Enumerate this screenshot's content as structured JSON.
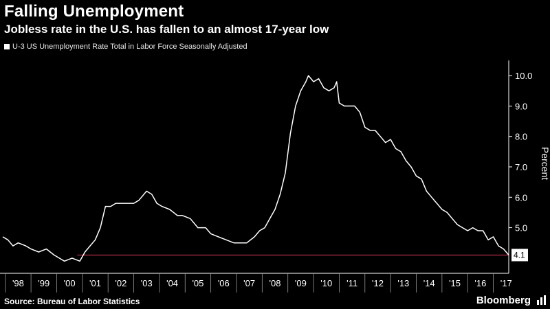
{
  "header": {
    "title": "Falling Unemployment",
    "subtitle": "Jobless rate in the U.S. has fallen to an almost 17-year low"
  },
  "legend": {
    "label": "U-3 US Unemployment Rate Total in Labor Force Seasonally Adjusted"
  },
  "footer": {
    "source": "Source: Bureau of Labor Statistics",
    "brand": "Bloomberg"
  },
  "colors": {
    "background": "#000000",
    "line": "#ffffff",
    "reference_line": "#cc3355",
    "gridline": "#3a3a3a",
    "text": "#ffffff"
  },
  "chart_data": {
    "type": "line",
    "title": "Falling Unemployment",
    "subtitle": "Jobless rate in the U.S. has fallen to an almost 17-year low",
    "ylabel": "Percent",
    "xlabel": "",
    "ylim": [
      3.5,
      10.5
    ],
    "xlim": [
      1997.9,
      2017.6
    ],
    "y_ticks": [
      5.0,
      6.0,
      7.0,
      8.0,
      9.0,
      10.0
    ],
    "y_tick_labels": [
      "5.0",
      "6.0",
      "7.0",
      "8.0",
      "9.0",
      "10.0"
    ],
    "x_ticks": [
      1998,
      1999,
      2000,
      2001,
      2002,
      2003,
      2004,
      2005,
      2006,
      2007,
      2008,
      2009,
      2010,
      2011,
      2012,
      2013,
      2014,
      2015,
      2016,
      2017
    ],
    "x_tick_labels": [
      "'98",
      "'99",
      "'00",
      "'01",
      "'02",
      "'03",
      "'04",
      "'05",
      "'06",
      "'07",
      "'08",
      "'09",
      "'10",
      "'11",
      "'12",
      "'13",
      "'14",
      "'15",
      "'16",
      "'17"
    ],
    "grid": false,
    "legend_position": "top-left",
    "last_value_label": "4.1",
    "reference_line": {
      "y": 4.1
    },
    "series": [
      {
        "name": "U-3 US Unemployment Rate Total in Labor Force Seasonally Adjusted",
        "color": "#ffffff",
        "x": [
          1997.9,
          1998.1,
          1998.3,
          1998.5,
          1998.8,
          1999.0,
          1999.3,
          1999.6,
          1999.9,
          2000.1,
          2000.3,
          2000.6,
          2000.9,
          2001.1,
          2001.3,
          2001.5,
          2001.7,
          2001.9,
          2002.1,
          2002.3,
          2002.5,
          2002.8,
          2003.0,
          2003.2,
          2003.5,
          2003.7,
          2003.9,
          2004.1,
          2004.4,
          2004.7,
          2004.9,
          2005.2,
          2005.5,
          2005.8,
          2006.0,
          2006.3,
          2006.6,
          2006.9,
          2007.1,
          2007.4,
          2007.7,
          2007.9,
          2008.1,
          2008.3,
          2008.5,
          2008.7,
          2008.9,
          2009.1,
          2009.3,
          2009.5,
          2009.7,
          2009.8,
          2010.0,
          2010.2,
          2010.4,
          2010.6,
          2010.8,
          2010.9,
          2011.0,
          2011.2,
          2011.4,
          2011.6,
          2011.8,
          2012.0,
          2012.2,
          2012.4,
          2012.6,
          2012.8,
          2013.0,
          2013.2,
          2013.4,
          2013.6,
          2013.8,
          2014.0,
          2014.2,
          2014.4,
          2014.6,
          2014.8,
          2015.0,
          2015.2,
          2015.4,
          2015.6,
          2015.8,
          2016.0,
          2016.2,
          2016.4,
          2016.6,
          2016.8,
          2017.0,
          2017.2,
          2017.4,
          2017.6
        ],
        "values": [
          4.7,
          4.6,
          4.4,
          4.5,
          4.4,
          4.3,
          4.2,
          4.3,
          4.1,
          4.0,
          3.9,
          4.0,
          3.9,
          4.2,
          4.4,
          4.6,
          5.0,
          5.7,
          5.7,
          5.8,
          5.8,
          5.8,
          5.8,
          5.9,
          6.2,
          6.1,
          5.8,
          5.7,
          5.6,
          5.4,
          5.4,
          5.3,
          5.0,
          5.0,
          4.8,
          4.7,
          4.6,
          4.5,
          4.5,
          4.5,
          4.7,
          4.9,
          5.0,
          5.3,
          5.6,
          6.1,
          6.8,
          8.1,
          9.0,
          9.5,
          9.8,
          10.0,
          9.8,
          9.9,
          9.6,
          9.5,
          9.6,
          9.8,
          9.1,
          9.0,
          9.0,
          9.0,
          8.8,
          8.3,
          8.2,
          8.2,
          8.0,
          7.8,
          7.9,
          7.6,
          7.5,
          7.2,
          7.0,
          6.7,
          6.6,
          6.2,
          6.0,
          5.8,
          5.6,
          5.5,
          5.3,
          5.1,
          5.0,
          4.9,
          5.0,
          4.9,
          4.9,
          4.6,
          4.7,
          4.4,
          4.3,
          4.1
        ]
      }
    ]
  }
}
